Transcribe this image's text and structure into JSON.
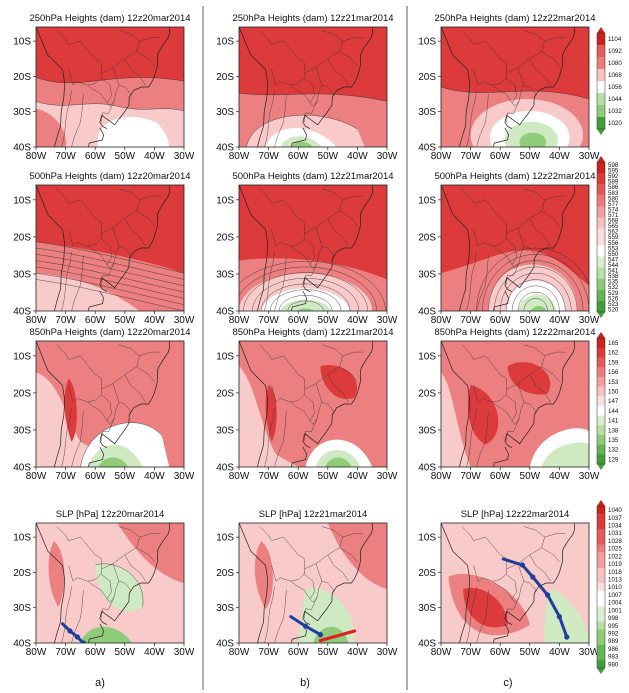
{
  "panels": [
    {
      "title": "250hPa Heights (dam)   12z20mar2014",
      "row": 0,
      "col": 0,
      "field": "h250_20"
    },
    {
      "title": "250hPa Heights (dam)   12z21mar2014",
      "row": 0,
      "col": 1,
      "field": "h250_21"
    },
    {
      "title": "250hPa Heights (dam)   12z22mar2014",
      "row": 0,
      "col": 2,
      "field": "h250_22"
    },
    {
      "title": "500hPa Heights (dam)   12z20mar2014",
      "row": 1,
      "col": 0,
      "field": "h500_20"
    },
    {
      "title": "500hPa Heights (dam)   12z21mar2014",
      "row": 1,
      "col": 1,
      "field": "h500_21"
    },
    {
      "title": "500hPa Heights (dam)   12z22mar2014",
      "row": 1,
      "col": 2,
      "field": "h500_22"
    },
    {
      "title": "850hPa Heights (dam)   12z20mar2014",
      "row": 2,
      "col": 0,
      "field": "h850_20"
    },
    {
      "title": "850hPa Heights (dam)   12z21mar2014",
      "row": 2,
      "col": 1,
      "field": "h850_21"
    },
    {
      "title": "850hPa Heights (dam)   12z22mar2014",
      "row": 2,
      "col": 2,
      "field": "h850_22"
    },
    {
      "title": "SLP [hPa]  12z20mar2014",
      "row": 3,
      "col": 0,
      "field": "slp_20"
    },
    {
      "title": "SLP [hPa]  12z21mar2014",
      "row": 3,
      "col": 1,
      "field": "slp_21"
    },
    {
      "title": "SLP [hPa]  12z22mar2014",
      "row": 3,
      "col": 2,
      "field": "slp_22"
    }
  ],
  "axes": {
    "x_ticks": [
      "80W",
      "70W",
      "60W",
      "50W",
      "40W",
      "30W"
    ],
    "y_ticks": [
      "10S",
      "20S",
      "30S",
      "40S"
    ]
  },
  "column_labels": [
    "a)",
    "b)",
    "c)"
  ],
  "colorbars": [
    {
      "row": 0,
      "labels": [
        "1104",
        "1092",
        "1080",
        "1068",
        "1056",
        "1044",
        "1032",
        "1020"
      ]
    },
    {
      "row": 1,
      "labels": [
        "598",
        "595",
        "592",
        "589",
        "586",
        "583",
        "580",
        "577",
        "574",
        "571",
        "568",
        "565",
        "562",
        "559",
        "556",
        "553",
        "550",
        "547",
        "544",
        "541",
        "538",
        "535",
        "532",
        "529",
        "526",
        "523",
        "520"
      ]
    },
    {
      "row": 2,
      "labels": [
        "165",
        "162",
        "159",
        "156",
        "153",
        "150",
        "147",
        "144",
        "141",
        "138",
        "135",
        "132",
        "129"
      ]
    },
    {
      "row": 3,
      "labels": [
        "1040",
        "1037",
        "1034",
        "1031",
        "1028",
        "1025",
        "1022",
        "1019",
        "1016",
        "1013",
        "1010",
        "1007",
        "1004",
        "1001",
        "998",
        "995",
        "992",
        "989",
        "986",
        "983",
        "980"
      ]
    }
  ],
  "colors": {
    "deep_red": "#dd3b3b",
    "mid_red": "#ec8080",
    "light_red": "#f8caca",
    "white": "#ffffff",
    "light_green": "#cfe9c2",
    "mid_green": "#8fcc7a",
    "deep_green": "#3f9d3a",
    "front": "#1e3f9c",
    "warm_front": "#e0201c"
  }
}
